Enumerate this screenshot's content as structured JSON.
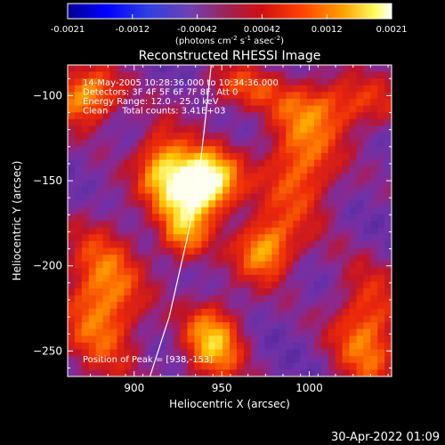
{
  "chart_data": {
    "type": "heatmap",
    "title": "Reconstructed RHESSI Image",
    "xlabel": "Heliocentric X (arcsec)",
    "ylabel": "Heliocentric Y (arcsec)",
    "xlim": [
      862,
      1047
    ],
    "ylim": [
      -265,
      -82
    ],
    "xticks": [
      900,
      950,
      1000
    ],
    "yticks": [
      -100,
      -150,
      -200,
      -250
    ],
    "colorbar": {
      "ticks": [
        "-0.0021",
        "-0.0012",
        "-0.00042",
        "0.00042",
        "0.0012",
        "0.0021"
      ],
      "range": [
        -0.0021,
        0.0021
      ],
      "units_prefix": "(photons cm",
      "units_exp1": "-2",
      "units_mid": " s",
      "units_exp2": "-1",
      "units_mid2": " asec",
      "units_exp3": "-2",
      "units_suffix": ")"
    },
    "annotations": [
      "14-May-2005 10:28:36.000 to 10:34:36.000",
      "Detectors: 3F 4F 5F 6F 7F 8F, Att 0",
      "Energy Range: 12.0 - 25.0 keV",
      "Clean     Total counts: 3.41E+03"
    ],
    "peak_label": "Position of Peak = [938,-153]",
    "peak": [
      938,
      -153
    ],
    "sources": [
      {
        "x": 938,
        "y": -151,
        "sx": 14,
        "sy": 13,
        "amp": 1.0
      },
      {
        "x": 915,
        "y": -140,
        "sx": 10,
        "sy": 16,
        "amp": 0.45
      },
      {
        "x": 928,
        "y": -180,
        "sx": 10,
        "sy": 13,
        "amp": 0.45
      },
      {
        "x": 975,
        "y": -190,
        "sx": 12,
        "sy": 13,
        "amp": 0.55
      },
      {
        "x": 995,
        "y": -140,
        "sx": 15,
        "sy": 24,
        "amp": 0.45
      },
      {
        "x": 872,
        "y": -100,
        "sx": 14,
        "sy": 12,
        "amp": 0.55
      },
      {
        "x": 882,
        "y": -220,
        "sx": 16,
        "sy": 30,
        "amp": 0.5
      },
      {
        "x": 945,
        "y": -245,
        "sx": 12,
        "sy": 17,
        "amp": 0.55
      },
      {
        "x": 1033,
        "y": -240,
        "sx": 14,
        "sy": 25,
        "amp": 0.45
      },
      {
        "x": 1020,
        "y": -105,
        "sx": 25,
        "sy": 12,
        "amp": 0.35
      },
      {
        "x": 960,
        "y": -95,
        "sx": 16,
        "sy": 10,
        "amp": 0.3
      }
    ],
    "limb_curve": [
      [
        909,
        -265
      ],
      [
        920,
        -230
      ],
      [
        930,
        -185
      ],
      [
        936,
        -155
      ],
      [
        940,
        -120
      ],
      [
        944,
        -82
      ]
    ]
  },
  "footer": {
    "date": "30-Apr-2022 01:09"
  },
  "colors": {
    "background": "#000000",
    "axis": "#ffffff",
    "palette": [
      "#000080",
      "#0000ff",
      "#2050ff",
      "#7050c0",
      "#8040a0",
      "#c02020",
      "#ff3010",
      "#ff8000",
      "#ffd000",
      "#ffffa0",
      "#ffffff"
    ]
  }
}
